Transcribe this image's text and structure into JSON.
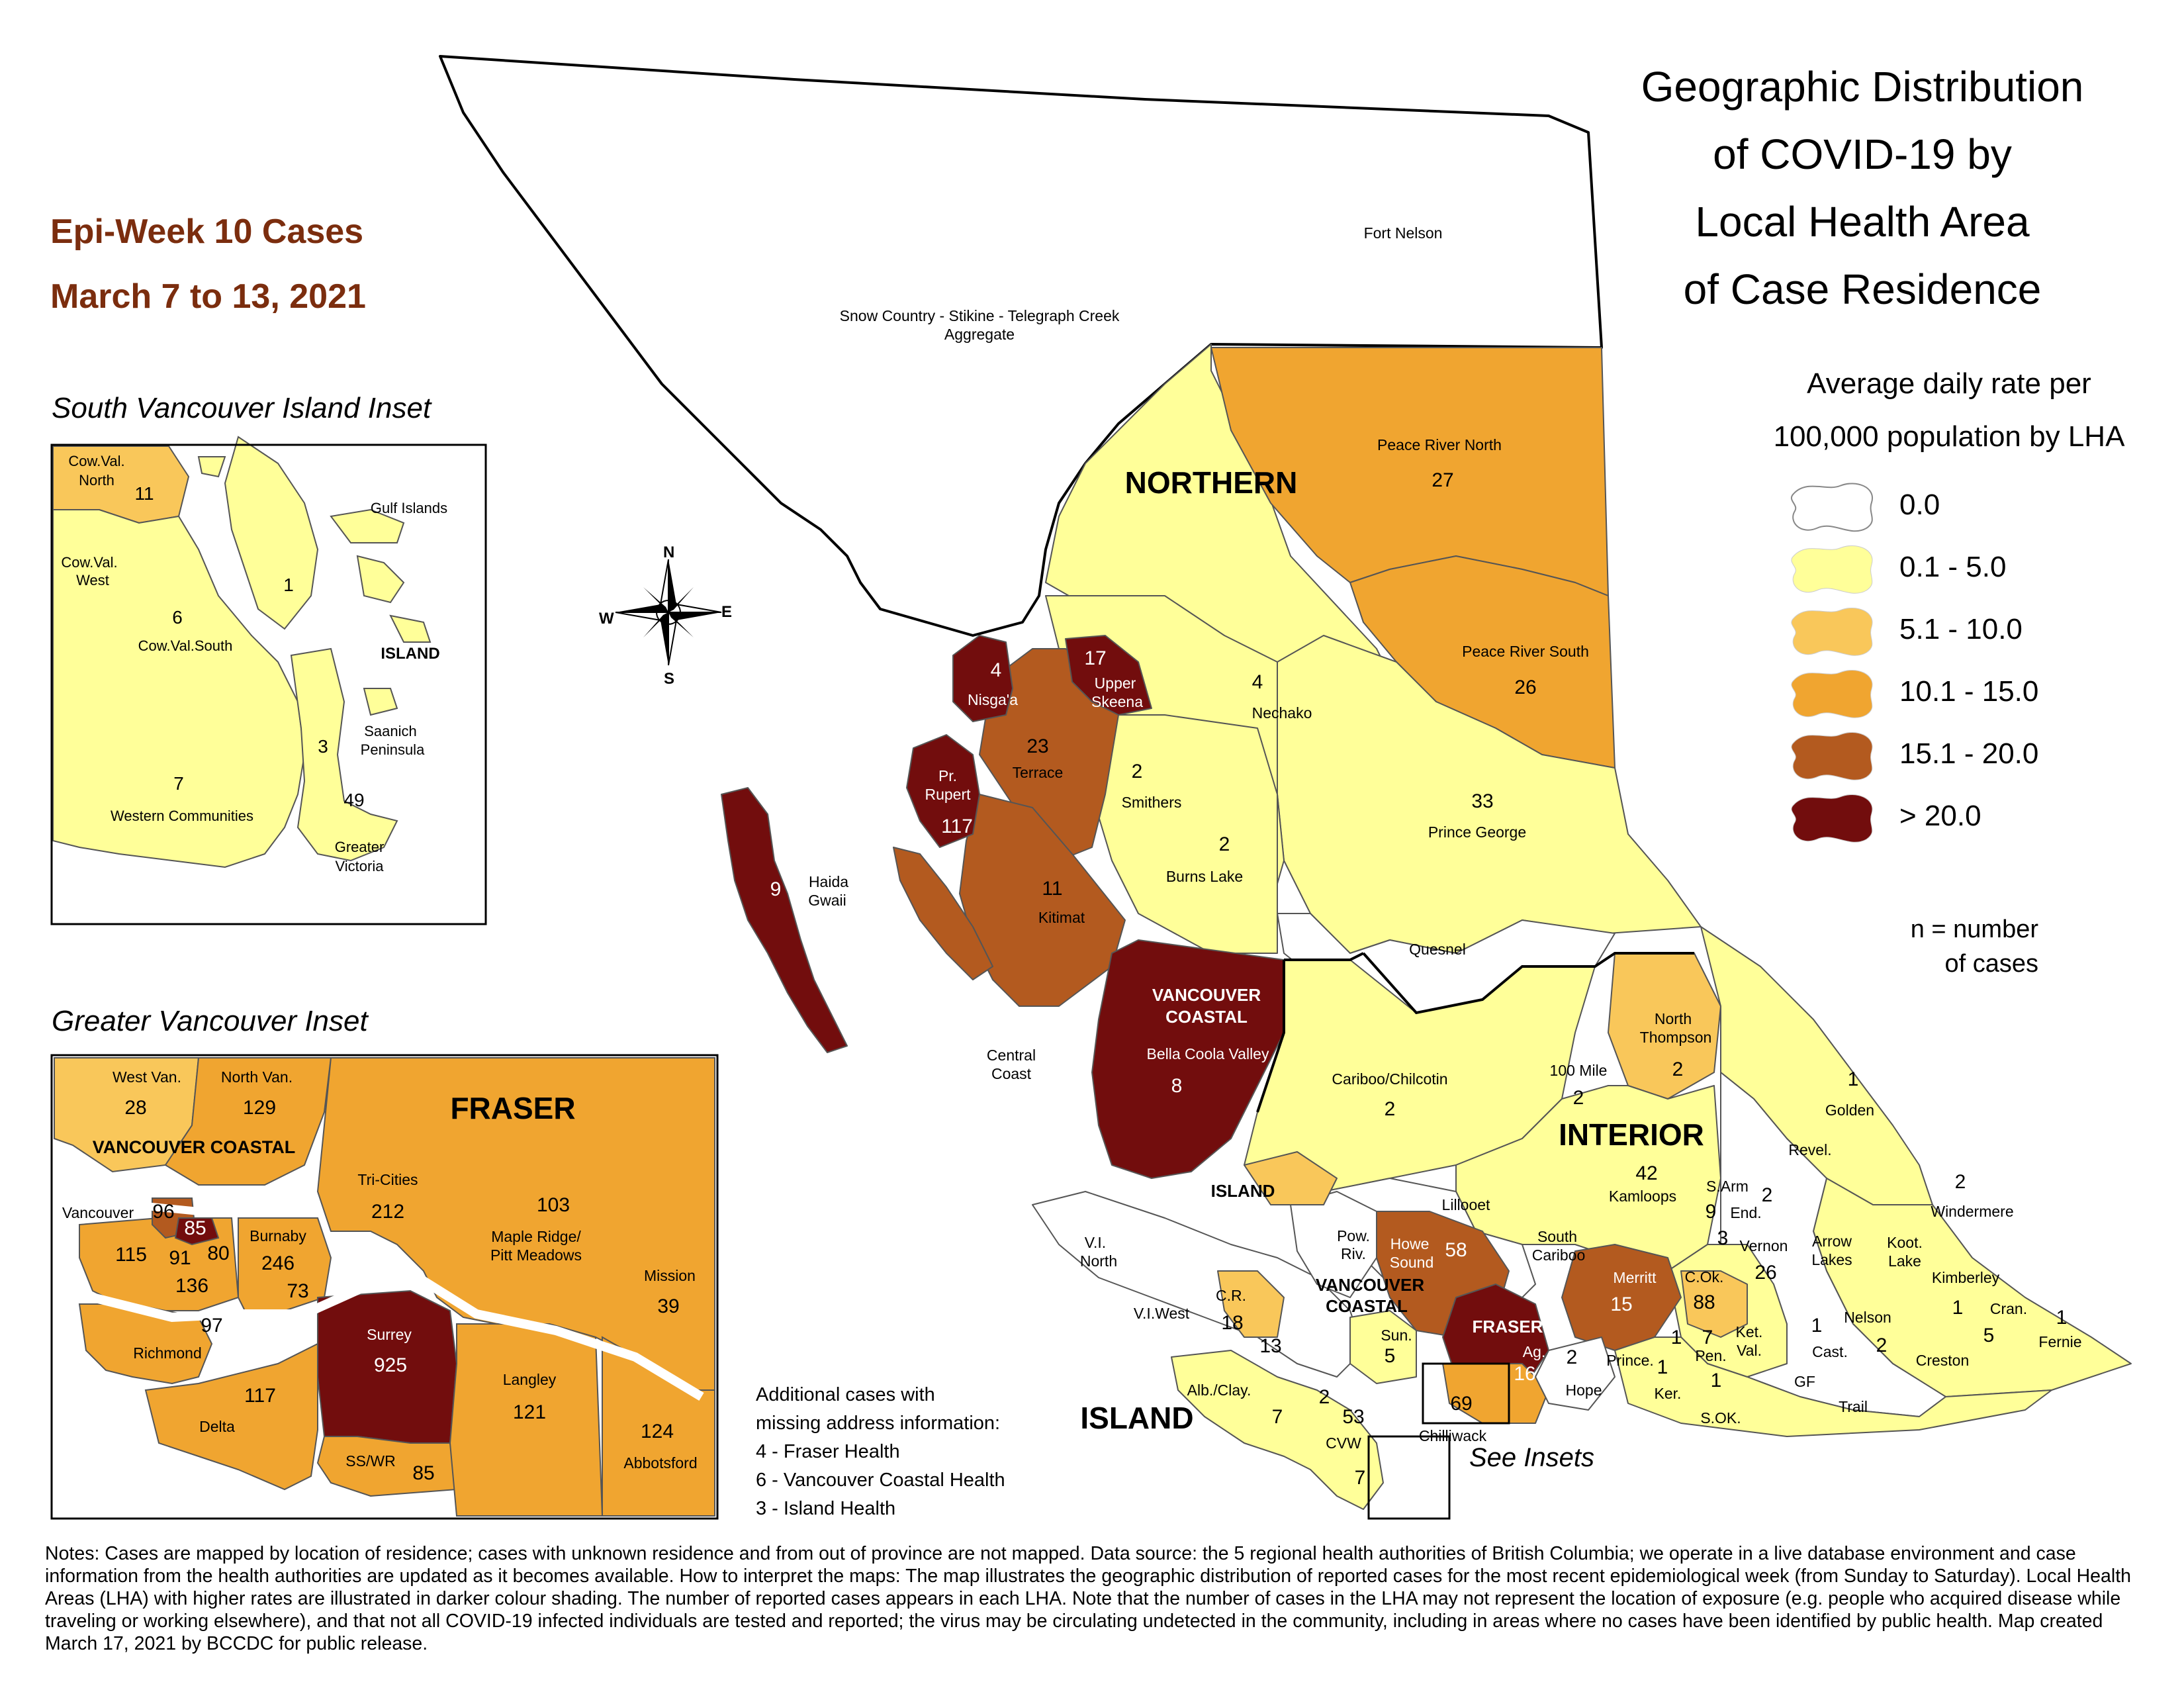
{
  "title_lines": [
    "Geographic Distribution",
    "of COVID-19 by",
    "Local Health Area",
    "of Case Residence"
  ],
  "epi_week": {
    "line1": "Epi-Week 10 Cases",
    "line2": "March 7 to 13, 2021"
  },
  "legend": {
    "title_lines": [
      "Average daily rate per",
      "100,000 population by LHA"
    ],
    "items": [
      {
        "label": "0.0",
        "color": "#ffffff"
      },
      {
        "label": "0.1 - 5.0",
        "color": "#ffff99"
      },
      {
        "label": "5.1 - 10.0",
        "color": "#f9c75a"
      },
      {
        "label": "10.1 - 15.0",
        "color": "#f0a530"
      },
      {
        "label": "15.1 - 20.0",
        "color": "#b35a1f"
      },
      {
        "label": "> 20.0",
        "color": "#720d0d"
      }
    ],
    "n_note_lines": [
      "n = number",
      "of cases"
    ]
  },
  "compass": {
    "n": "N",
    "s": "S",
    "e": "E",
    "w": "W"
  },
  "health_authorities": {
    "northern": "NORTHERN",
    "interior": "INTERIOR",
    "island": "ISLAND",
    "vancouver_coastal": "VANCOUVER COASTAL",
    "fraser": "FRASER"
  },
  "main_labels": {
    "fort_nelson": "Fort Nelson",
    "snow_country_1": "Snow Country - Stikine - Telegraph Creek",
    "snow_country_2": "Aggregate",
    "prn_name": "Peace River North",
    "prn_n": "27",
    "prs_name": "Peace River South",
    "prs_n": "26",
    "nechako_name": "Nechako",
    "nechako_n": "4",
    "pg_name": "Prince George",
    "pg_n": "33",
    "nisgaa_name": "Nisga'a",
    "nisgaa_n": "4",
    "skeena_1": "Upper",
    "skeena_2": "Skeena",
    "skeena_n": "17",
    "terrace_name": "Terrace",
    "terrace_n": "23",
    "smithers_name": "Smithers",
    "smithers_n": "2",
    "burns_name": "Burns Lake",
    "burns_n": "2",
    "rupert_1": "Pr.",
    "rupert_2": "Rupert",
    "rupert_n": "117",
    "haida_1": "Haida",
    "haida_2": "Gwaii",
    "haida_n": "9",
    "kitimat_name": "Kitimat",
    "kitimat_n": "11",
    "quesnel": "Quesnel",
    "vc_1": "VANCOUVER",
    "vc_2": "COASTAL",
    "bella_name": "Bella Coola Valley",
    "bella_n": "8",
    "cc_1": "Central",
    "cc_2": "Coast",
    "cariboo_name": "Cariboo/Chilcotin",
    "cariboo_n": "2",
    "nt_1": "North",
    "nt_2": "Thompson",
    "nt_n": "2",
    "hundred_mile": "100 Mile",
    "hundred_mile_n": "2",
    "golden_name": "Golden",
    "golden_n": "1",
    "kamloops_name": "Kamloops",
    "kamloops_n": "42",
    "revel": "Revel.",
    "windermere_name": "Windermere",
    "windermere_n": "2",
    "lillooet": "Lillooet",
    "sarm": "S.Arm",
    "sarm_n": "9",
    "end": "End.",
    "end_n": "2",
    "vernon_name": "Vernon",
    "vernon_n": "26",
    "vernon_small": "3",
    "arrow_1": "Arrow",
    "arrow_2": "Lakes",
    "koot_1": "Koot.",
    "koot_2": "Lake",
    "kimberley_name": "Kimberley",
    "kimberley_n": "1",
    "cran_name": "Cran.",
    "cran_n": "5",
    "fernie_name": "Fernie",
    "fernie_n": "1",
    "vinorth_1": "V.I.",
    "vinorth_2": "North",
    "powriv_1": "Pow.",
    "powriv_2": "Riv.",
    "howe_1": "Howe",
    "howe_2": "Sound",
    "howe_n": "58",
    "scariboo_1": "South",
    "scariboo_2": "Cariboo",
    "merritt_name": "Merritt",
    "merritt_n": "15",
    "cok_name": "C.Ok.",
    "cok_n": "88",
    "viwest": "V.I.West",
    "cr_name": "C.R.",
    "cr_n": "18",
    "cr_small": "13",
    "vc_small_1": "VANCOUVER",
    "vc_small_2": "COASTAL",
    "sun_name": "Sun.",
    "sun_n": "5",
    "fraser_small": "FRASER",
    "ag_name": "Ag.",
    "ag_n": "16",
    "hope_name": "Hope",
    "hope_n": "2",
    "prince": "Prince.",
    "ketval_1": "Ket.",
    "ketval_2": "Val.",
    "pen_name": "Pen.",
    "pen_n1": "1",
    "pen_n2": "7",
    "ker_name": "Ker.",
    "ker_n": "1",
    "ker_n2": "1",
    "cast_name": "Cast.",
    "cast_n": "1",
    "nelson_name": "Nelson",
    "nelson_n": "2",
    "creston": "Creston",
    "gf": "GF",
    "trail": "Trail",
    "sok": "S.OK.",
    "alb_name": "Alb./Clay.",
    "alb_n": "7",
    "island_small_n1": "2",
    "island_small_n2": "53",
    "chilliwack_name": "Chilliwack",
    "chilliwack_n": "69",
    "cvw": "CVW",
    "cvw_n": "7",
    "see_insets": "See Insets"
  },
  "missing": {
    "lines": [
      "Additional cases with",
      "missing address information:",
      "4 - Fraser Health",
      "6 - Vancouver Coastal Health",
      "3 - Island Health"
    ]
  },
  "svi_inset": {
    "title": "South Vancouver Island Inset",
    "cvn_1": "Cow.Val.",
    "cvn_2": "North",
    "cvn_n": "11",
    "gulf": "Gulf Islands",
    "cvw_1": "Cow.Val.",
    "cvw_2": "West",
    "gulf_n": "1",
    "cvs_name": "Cow.Val.South",
    "cvs_n": "6",
    "island": "ISLAND",
    "saanich_1": "Saanich",
    "saanich_2": "Peninsula",
    "saanich_n": "3",
    "wc_name": "Western Communities",
    "wc_n": "7",
    "gv_1": "Greater",
    "gv_2": "Victoria",
    "gv_n": "49"
  },
  "gv_inset": {
    "title": "Greater Vancouver Inset",
    "westvan_name": "West Van.",
    "westvan_n": "28",
    "northvan_name": "North Van.",
    "northvan_n": "129",
    "fraser": "FRASER",
    "vc": "VANCOUVER COASTAL",
    "tri_name": "Tri-Cities",
    "tri_n": "212",
    "maple_1": "Maple Ridge/",
    "maple_2": "Pitt Meadows",
    "maple_n": "103",
    "vancouver_name": "Vancouver",
    "v96": "96",
    "v85": "85",
    "v115": "115",
    "v91": "91",
    "v80": "80",
    "v136": "136",
    "burnaby_name": "Burnaby",
    "burnaby_n": "246",
    "b73": "73",
    "mission_name": "Mission",
    "mission_n": "39",
    "richmond_name": "Richmond",
    "richmond_n": "97",
    "surrey_name": "Surrey",
    "surrey_n": "925",
    "langley_name": "Langley",
    "langley_n": "121",
    "delta_name": "Delta",
    "delta_n": "117",
    "abbotsford_name": "Abbotsford",
    "abbotsford_n": "124",
    "sswr_name": "SS/WR",
    "sswr_n": "85"
  },
  "notes": "Notes: Cases are mapped by location of residence; cases with unknown residence and from out of province are not mapped. Data source: the 5 regional health authorities of British Columbia; we operate in a live database environment and case information from the health authorities are updated as it becomes available. How to interpret the maps: The map illustrates the geographic distribution of reported cases for the most recent epidemiological week (from Sunday to Saturday). Local Health Areas (LHA) with higher rates are illustrated in darker colour shading. The number of reported cases appears in each LHA. Note that the number of cases in the LHA may not represent the location of exposure (e.g. people who acquired disease while traveling or working elsewhere), and that not all COVID-19 infected individuals are tested and reported; the virus may be circulating undetected in the community, including in areas where no cases have been identified by public health. Map created March 17, 2021 by BCCDC for public release."
}
